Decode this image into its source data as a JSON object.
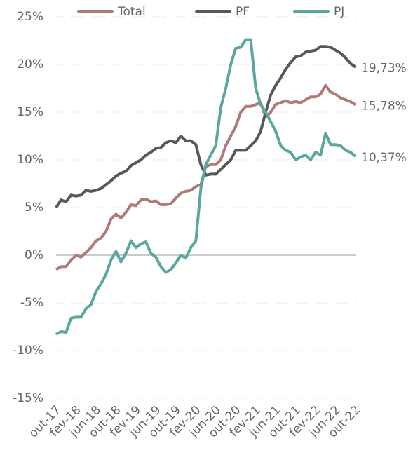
{
  "chart_data": {
    "type": "line",
    "categories": [
      "out-17",
      null,
      null,
      null,
      "fev-18",
      null,
      null,
      null,
      "jun-18",
      null,
      null,
      null,
      "out-18",
      null,
      null,
      null,
      "fev-19",
      null,
      null,
      null,
      "jun-19",
      null,
      null,
      null,
      "out-19",
      null,
      null,
      null,
      "fev-20",
      null,
      null,
      null,
      "jun-20",
      null,
      null,
      null,
      "out-20",
      null,
      null,
      null,
      "fev-21",
      null,
      null,
      null,
      "jun-21",
      null,
      null,
      null,
      "out-21",
      null,
      null,
      null,
      "fev-22",
      null,
      null,
      null,
      "jun-22",
      null,
      null,
      null,
      "out-22"
    ],
    "series": [
      {
        "name": "Total",
        "color": "#b07a78",
        "values": [
          -1.5,
          -1.2,
          -1.2,
          -0.5,
          0,
          -0.2,
          0.3,
          0.8,
          1.5,
          1.8,
          2.5,
          3.8,
          4.3,
          3.9,
          4.5,
          5.3,
          5.2,
          5.8,
          5.9,
          5.6,
          5.7,
          5.3,
          5.3,
          5.4,
          6.0,
          6.5,
          6.7,
          6.8,
          7.2,
          7.4,
          9.3,
          9.5,
          9.5,
          10.0,
          11.5,
          12.5,
          13.5,
          15.0,
          15.6,
          15.6,
          15.8,
          16.0,
          14.5,
          15.0,
          15.8,
          16.0,
          16.2,
          16.0,
          16.1,
          16.0,
          16.3,
          16.6,
          16.6,
          16.9,
          17.8,
          17.1,
          16.9,
          16.5,
          16.3,
          16.1,
          15.78
        ],
        "value_labels": [
          null,
          null,
          null,
          null,
          null,
          null,
          null,
          null,
          null,
          null,
          null,
          null,
          null,
          null,
          null,
          null,
          null,
          null,
          null,
          null,
          null,
          null,
          null,
          null,
          null,
          null,
          null,
          null,
          null,
          null,
          null,
          null,
          null,
          null,
          null,
          null,
          null,
          null,
          null,
          null,
          null,
          null,
          null,
          null,
          null,
          null,
          null,
          null,
          null,
          null,
          null,
          null,
          null,
          null,
          null,
          null,
          null,
          null,
          null,
          null,
          "15,78%"
        ]
      },
      {
        "name": "PF",
        "color": "#58585b",
        "values": [
          5.0,
          5.8,
          5.6,
          6.3,
          6.2,
          6.3,
          6.8,
          6.7,
          6.8,
          7.0,
          7.4,
          7.8,
          8.3,
          8.6,
          8.8,
          9.4,
          9.7,
          10.0,
          10.5,
          10.8,
          11.2,
          11.3,
          11.8,
          12.0,
          11.8,
          12.5,
          12.0,
          12.0,
          11.6,
          9.5,
          8.4,
          8.5,
          8.5,
          9.0,
          9.5,
          10.0,
          11.0,
          11.0,
          11.0,
          11.5,
          12.0,
          13.0,
          15.0,
          16.8,
          17.8,
          18.6,
          19.5,
          20.2,
          20.8,
          20.9,
          21.3,
          21.4,
          21.5,
          21.9,
          21.9,
          21.8,
          21.5,
          21.2,
          20.7,
          20.1,
          19.73
        ],
        "value_labels": [
          null,
          null,
          null,
          null,
          null,
          null,
          null,
          null,
          null,
          null,
          null,
          null,
          null,
          null,
          null,
          null,
          null,
          null,
          null,
          null,
          null,
          null,
          null,
          null,
          null,
          null,
          null,
          null,
          null,
          null,
          null,
          null,
          null,
          null,
          null,
          null,
          null,
          null,
          null,
          null,
          null,
          null,
          null,
          null,
          null,
          null,
          null,
          null,
          null,
          null,
          null,
          null,
          null,
          null,
          null,
          null,
          null,
          null,
          null,
          null,
          "19,73%"
        ]
      },
      {
        "name": "PJ",
        "color": "#5aa89c",
        "values": [
          -8.3,
          -8.0,
          -8.1,
          -6.6,
          -6.5,
          -6.5,
          -5.6,
          -5.2,
          -3.8,
          -3.0,
          -2.0,
          -0.5,
          0.4,
          -0.7,
          0.2,
          1.5,
          0.8,
          1.2,
          1.4,
          0.2,
          -0.2,
          -1.2,
          -1.8,
          -1.5,
          -0.8,
          0,
          -0.3,
          0.8,
          1.5,
          7.0,
          9.5,
          10.5,
          11.5,
          15.5,
          17.5,
          20.0,
          21.7,
          21.8,
          22.6,
          22.6,
          17.5,
          15.8,
          15.0,
          14.0,
          13.0,
          11.5,
          11.0,
          10.8,
          10.0,
          10.3,
          10.5,
          10.0,
          10.8,
          10.5,
          12.8,
          11.6,
          11.6,
          11.5,
          11.0,
          10.8,
          10.37
        ],
        "value_labels": [
          null,
          null,
          null,
          null,
          null,
          null,
          null,
          null,
          null,
          null,
          null,
          null,
          null,
          null,
          null,
          null,
          null,
          null,
          null,
          null,
          null,
          null,
          null,
          null,
          null,
          null,
          null,
          null,
          null,
          null,
          null,
          null,
          null,
          null,
          null,
          null,
          null,
          null,
          null,
          null,
          null,
          null,
          null,
          null,
          null,
          null,
          null,
          null,
          null,
          null,
          null,
          null,
          null,
          null,
          null,
          null,
          null,
          null,
          null,
          null,
          "10,37%"
        ]
      }
    ],
    "ylim": [
      -15,
      25
    ],
    "yticks": [
      {
        "value": -15,
        "label": "-15%"
      },
      {
        "value": -10,
        "label": "-10%"
      },
      {
        "value": -5,
        "label": "-5%"
      },
      {
        "value": 0,
        "label": "0%"
      },
      {
        "value": 5,
        "label": "5%"
      },
      {
        "value": 10,
        "label": "10%"
      },
      {
        "value": 15,
        "label": "15%"
      },
      {
        "value": 20,
        "label": "20%"
      },
      {
        "value": 25,
        "label": "25%"
      }
    ],
    "grid": true,
    "legend": "top"
  }
}
